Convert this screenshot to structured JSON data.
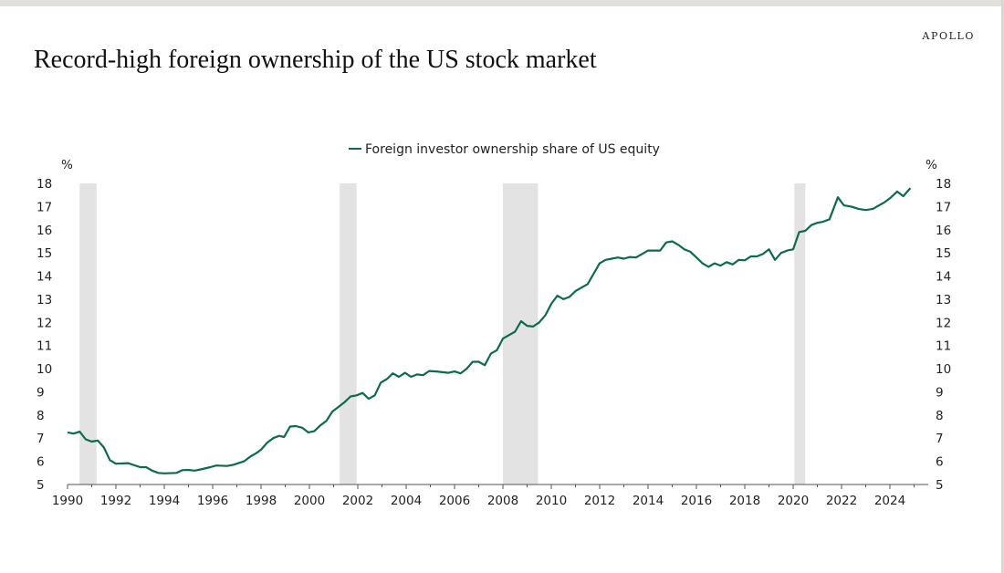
{
  "brand": "APOLLO",
  "title": "Record-high foreign ownership of the US stock market",
  "chart_data": {
    "type": "line",
    "title": "Record-high foreign ownership of the US stock market",
    "xlabel": "",
    "ylabel": "%",
    "ylabel_right": "%",
    "xlim": [
      1990,
      2025.6
    ],
    "ylim": [
      5,
      18
    ],
    "xticks": [
      1990,
      1992,
      1994,
      1996,
      1998,
      2000,
      2002,
      2004,
      2006,
      2008,
      2010,
      2012,
      2014,
      2016,
      2018,
      2020,
      2022,
      2024
    ],
    "yticks": [
      5,
      6,
      7,
      8,
      9,
      10,
      11,
      12,
      13,
      14,
      15,
      16,
      17,
      18
    ],
    "legend": {
      "position": "top-center",
      "entries": [
        "Foreign investor ownership share of US equity"
      ]
    },
    "grid": false,
    "recessions": [
      [
        1990.5,
        1991.2
      ],
      [
        2001.25,
        2001.95
      ],
      [
        2008.0,
        2009.45
      ],
      [
        2020.05,
        2020.5
      ]
    ],
    "colors": {
      "line": "#0b6b4f",
      "recession": "#e3e3e3"
    },
    "series": [
      {
        "name": "Foreign investor ownership share of US equity",
        "points": [
          [
            1990.0,
            7.25
          ],
          [
            1990.25,
            7.2
          ],
          [
            1990.5,
            7.28
          ],
          [
            1990.75,
            6.95
          ],
          [
            1991.0,
            6.85
          ],
          [
            1991.25,
            6.9
          ],
          [
            1991.5,
            6.6
          ],
          [
            1991.75,
            6.05
          ],
          [
            1992.0,
            5.9
          ],
          [
            1992.5,
            5.92
          ],
          [
            1993.0,
            5.75
          ],
          [
            1993.25,
            5.75
          ],
          [
            1993.5,
            5.6
          ],
          [
            1993.75,
            5.5
          ],
          [
            1994.0,
            5.48
          ],
          [
            1994.5,
            5.5
          ],
          [
            1994.75,
            5.62
          ],
          [
            1995.0,
            5.63
          ],
          [
            1995.25,
            5.6
          ],
          [
            1995.5,
            5.65
          ],
          [
            1995.9,
            5.75
          ],
          [
            1996.15,
            5.82
          ],
          [
            1996.6,
            5.8
          ],
          [
            1996.85,
            5.85
          ],
          [
            1997.3,
            6.0
          ],
          [
            1997.55,
            6.2
          ],
          [
            1997.8,
            6.35
          ],
          [
            1998.0,
            6.5
          ],
          [
            1998.25,
            6.8
          ],
          [
            1998.5,
            7.0
          ],
          [
            1998.75,
            7.1
          ],
          [
            1998.95,
            7.05
          ],
          [
            1999.2,
            7.5
          ],
          [
            1999.45,
            7.52
          ],
          [
            1999.7,
            7.45
          ],
          [
            1999.95,
            7.25
          ],
          [
            2000.2,
            7.3
          ],
          [
            2000.45,
            7.55
          ],
          [
            2000.7,
            7.75
          ],
          [
            2000.95,
            8.15
          ],
          [
            2001.2,
            8.35
          ],
          [
            2001.45,
            8.55
          ],
          [
            2001.7,
            8.8
          ],
          [
            2001.95,
            8.85
          ],
          [
            2002.2,
            8.95
          ],
          [
            2002.45,
            8.7
          ],
          [
            2002.7,
            8.85
          ],
          [
            2002.95,
            9.4
          ],
          [
            2003.2,
            9.55
          ],
          [
            2003.45,
            9.8
          ],
          [
            2003.7,
            9.65
          ],
          [
            2003.95,
            9.82
          ],
          [
            2004.2,
            9.65
          ],
          [
            2004.45,
            9.75
          ],
          [
            2004.7,
            9.72
          ],
          [
            2004.95,
            9.9
          ],
          [
            2005.25,
            9.88
          ],
          [
            2005.75,
            9.82
          ],
          [
            2006.0,
            9.88
          ],
          [
            2006.25,
            9.8
          ],
          [
            2006.5,
            10.0
          ],
          [
            2006.75,
            10.3
          ],
          [
            2007.0,
            10.3
          ],
          [
            2007.25,
            10.15
          ],
          [
            2007.5,
            10.65
          ],
          [
            2007.75,
            10.8
          ],
          [
            2008.0,
            11.3
          ],
          [
            2008.25,
            11.45
          ],
          [
            2008.5,
            11.6
          ],
          [
            2008.75,
            12.05
          ],
          [
            2009.0,
            11.85
          ],
          [
            2009.25,
            11.82
          ],
          [
            2009.5,
            12.0
          ],
          [
            2009.75,
            12.3
          ],
          [
            2010.0,
            12.8
          ],
          [
            2010.25,
            13.15
          ],
          [
            2010.5,
            13.0
          ],
          [
            2010.75,
            13.1
          ],
          [
            2011.0,
            13.35
          ],
          [
            2011.25,
            13.5
          ],
          [
            2011.5,
            13.65
          ],
          [
            2011.75,
            14.1
          ],
          [
            2012.0,
            14.55
          ],
          [
            2012.25,
            14.7
          ],
          [
            2012.5,
            14.75
          ],
          [
            2012.75,
            14.8
          ],
          [
            2013.0,
            14.75
          ],
          [
            2013.25,
            14.82
          ],
          [
            2013.5,
            14.8
          ],
          [
            2013.75,
            14.95
          ],
          [
            2014.0,
            15.1
          ],
          [
            2014.25,
            15.1
          ],
          [
            2014.5,
            15.1
          ],
          [
            2014.75,
            15.45
          ],
          [
            2015.0,
            15.5
          ],
          [
            2015.25,
            15.35
          ],
          [
            2015.5,
            15.15
          ],
          [
            2015.75,
            15.05
          ],
          [
            2016.0,
            14.8
          ],
          [
            2016.25,
            14.55
          ],
          [
            2016.5,
            14.4
          ],
          [
            2016.75,
            14.55
          ],
          [
            2017.0,
            14.45
          ],
          [
            2017.25,
            14.6
          ],
          [
            2017.5,
            14.5
          ],
          [
            2017.75,
            14.7
          ],
          [
            2018.0,
            14.68
          ],
          [
            2018.25,
            14.85
          ],
          [
            2018.5,
            14.85
          ],
          [
            2018.75,
            14.95
          ],
          [
            2019.0,
            15.15
          ],
          [
            2019.25,
            14.7
          ],
          [
            2019.5,
            15.0
          ],
          [
            2019.75,
            15.1
          ],
          [
            2020.0,
            15.15
          ],
          [
            2020.25,
            15.9
          ],
          [
            2020.5,
            15.95
          ],
          [
            2020.75,
            16.2
          ],
          [
            2021.0,
            16.3
          ],
          [
            2021.25,
            16.35
          ],
          [
            2021.5,
            16.45
          ],
          [
            2021.85,
            17.4
          ],
          [
            2022.1,
            17.05
          ],
          [
            2022.4,
            17.0
          ],
          [
            2022.7,
            16.9
          ],
          [
            2023.0,
            16.85
          ],
          [
            2023.3,
            16.9
          ],
          [
            2023.55,
            17.05
          ],
          [
            2023.8,
            17.2
          ],
          [
            2024.05,
            17.4
          ],
          [
            2024.3,
            17.65
          ],
          [
            2024.55,
            17.45
          ],
          [
            2024.85,
            17.8
          ]
        ]
      }
    ]
  }
}
